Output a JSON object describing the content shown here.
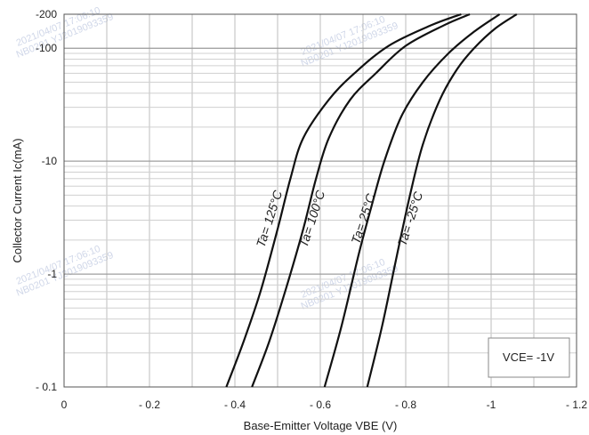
{
  "chart_data": {
    "type": "line",
    "title": "",
    "xlabel": "Base-Emitter Voltage  VBE (V)",
    "ylabel": "Collector Current   Ic(mA)",
    "x_scale": "linear",
    "y_scale": "log",
    "xlim": [
      0,
      -1.2
    ],
    "ylim": [
      -0.1,
      -200
    ],
    "grid": true,
    "x_ticks": [
      "0",
      "- 0.2",
      "- 0.4",
      "- 0.6",
      "- 0.8",
      "-1",
      "- 1.2"
    ],
    "y_ticks": [
      "- 0.1",
      "-1",
      "-10",
      "-100",
      "-200"
    ],
    "annotation": "VCE= -1V",
    "watermarks": [
      "2021/04/07 17:06:10",
      "NB0201 YJ2019093359"
    ],
    "series": [
      {
        "name": "Ta= 125°C",
        "label_at": [
          -0.49,
          -3.0
        ],
        "points": [
          [
            -0.38,
            -0.1
          ],
          [
            -0.42,
            -0.25
          ],
          [
            -0.46,
            -0.7
          ],
          [
            -0.5,
            -2.5
          ],
          [
            -0.53,
            -7
          ],
          [
            -0.56,
            -16
          ],
          [
            -0.62,
            -35
          ],
          [
            -0.68,
            -60
          ],
          [
            -0.76,
            -105
          ],
          [
            -0.86,
            -160
          ],
          [
            -0.93,
            -200
          ]
        ]
      },
      {
        "name": "Ta= 100°C",
        "label_at": [
          -0.59,
          -3.0
        ],
        "points": [
          [
            -0.44,
            -0.1
          ],
          [
            -0.48,
            -0.25
          ],
          [
            -0.52,
            -0.75
          ],
          [
            -0.56,
            -2.5
          ],
          [
            -0.59,
            -7
          ],
          [
            -0.62,
            -16
          ],
          [
            -0.67,
            -35
          ],
          [
            -0.73,
            -60
          ],
          [
            -0.8,
            -105
          ],
          [
            -0.89,
            -160
          ],
          [
            -0.95,
            -200
          ]
        ]
      },
      {
        "name": "Ta= 25°C",
        "label_at": [
          -0.71,
          -3.0
        ],
        "points": [
          [
            -0.61,
            -0.1
          ],
          [
            -0.65,
            -0.35
          ],
          [
            -0.69,
            -1.5
          ],
          [
            -0.72,
            -4
          ],
          [
            -0.75,
            -10
          ],
          [
            -0.79,
            -25
          ],
          [
            -0.84,
            -50
          ],
          [
            -0.9,
            -90
          ],
          [
            -0.96,
            -140
          ],
          [
            -1.02,
            -200
          ]
        ]
      },
      {
        "name": "Ta= -25°C",
        "label_at": [
          -0.82,
          -3.0
        ],
        "points": [
          [
            -0.71,
            -0.1
          ],
          [
            -0.745,
            -0.35
          ],
          [
            -0.78,
            -1.5
          ],
          [
            -0.81,
            -5
          ],
          [
            -0.84,
            -14
          ],
          [
            -0.88,
            -35
          ],
          [
            -0.92,
            -65
          ],
          [
            -0.96,
            -100
          ],
          [
            -1.01,
            -150
          ],
          [
            -1.06,
            -200
          ]
        ]
      }
    ]
  }
}
